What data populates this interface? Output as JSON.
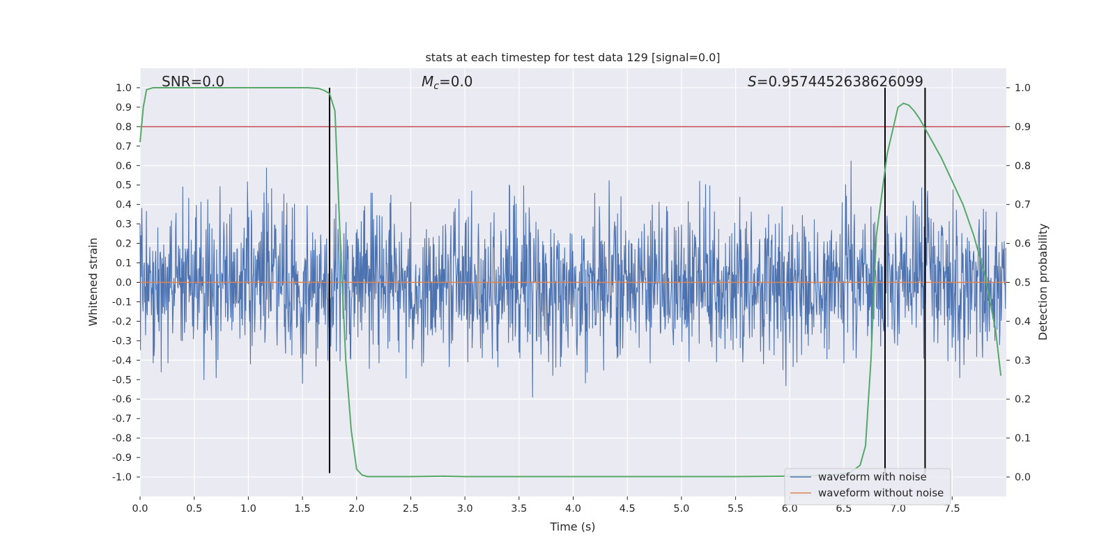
{
  "chart_data": {
    "type": "line",
    "title": "stats at each timestep for test data 129 [signal=0.0]",
    "xlabel": "Time (s)",
    "ylabel": "Whitened strain",
    "y2label": "Detection probability",
    "xlim": [
      0.0,
      8.0
    ],
    "ylim": [
      -1.1,
      1.1
    ],
    "y2lim": [
      -0.05,
      1.05
    ],
    "xticks": [
      "0.0",
      "0.5",
      "1.0",
      "1.5",
      "2.0",
      "2.5",
      "3.0",
      "3.5",
      "4.0",
      "4.5",
      "5.0",
      "5.5",
      "6.0",
      "6.5",
      "7.0",
      "7.5"
    ],
    "yticks": [
      "1.0",
      "0.9",
      "0.8",
      "0.7",
      "0.6",
      "0.5",
      "0.4",
      "0.3",
      "0.2",
      "0.1",
      "0.0",
      "-0.1",
      "-0.2",
      "-0.3",
      "-0.4",
      "-0.5",
      "-0.6",
      "-0.7",
      "-0.8",
      "-0.9",
      "-1.0"
    ],
    "y2ticks": [
      "1.0",
      "0.9",
      "0.8",
      "0.7",
      "0.6",
      "0.5",
      "0.4",
      "0.3",
      "0.2",
      "0.1",
      "0.0"
    ],
    "grid": true,
    "legend_position": "lower-right",
    "annotations": [
      {
        "text": "SNR=0.0",
        "x": 0.2
      },
      {
        "math_symbol": "M",
        "math_sub": "c",
        "text": "=0.0",
        "x": 2.6
      },
      {
        "math_symbol": "S",
        "text": "=0.9574452638626099",
        "x": 5.6
      }
    ],
    "threshold_line": {
      "y": 0.8,
      "color": "#c44e52"
    },
    "vertical_lines": [
      {
        "x": 1.75,
        "y_range": [
          -0.98,
          1.0
        ]
      },
      {
        "x": 6.88,
        "y_range": [
          -0.98,
          1.0
        ]
      },
      {
        "x": 7.25,
        "y_range": [
          -0.98,
          1.0
        ]
      }
    ],
    "series": [
      {
        "name": "waveform with noise",
        "color": "#4c72b0",
        "noise_std": 0.19,
        "n_points": 2048
      },
      {
        "name": "waveform without noise",
        "color": "#dd8452",
        "values": "flat 0.0"
      },
      {
        "color": "#55a868",
        "axis": "right",
        "x": [
          0.0,
          0.03,
          0.06,
          0.12,
          0.2,
          0.4,
          0.6,
          0.8,
          1.0,
          1.2,
          1.4,
          1.55,
          1.65,
          1.7,
          1.75,
          1.8,
          1.85,
          1.9,
          1.95,
          2.0,
          2.05,
          2.1,
          2.2,
          2.5,
          2.8,
          3.0,
          3.5,
          4.0,
          4.5,
          5.0,
          5.5,
          6.0,
          6.3,
          6.55,
          6.65,
          6.7,
          6.75,
          6.8,
          6.9,
          7.0,
          7.05,
          7.1,
          7.15,
          7.2,
          7.3,
          7.4,
          7.5,
          7.6,
          7.7,
          7.8,
          7.9,
          7.95
        ],
        "values": [
          0.86,
          0.95,
          0.995,
          1.0,
          1.0,
          1.0,
          1.0,
          1.0,
          1.0,
          1.0,
          1.0,
          1.0,
          0.998,
          0.993,
          0.985,
          0.94,
          0.6,
          0.3,
          0.12,
          0.02,
          0.005,
          0.001,
          0.001,
          0.001,
          0.002,
          0.001,
          0.001,
          0.001,
          0.001,
          0.001,
          0.001,
          0.002,
          0.004,
          0.01,
          0.03,
          0.08,
          0.3,
          0.62,
          0.83,
          0.95,
          0.96,
          0.955,
          0.94,
          0.92,
          0.87,
          0.82,
          0.76,
          0.7,
          0.62,
          0.52,
          0.38,
          0.26
        ]
      }
    ]
  }
}
